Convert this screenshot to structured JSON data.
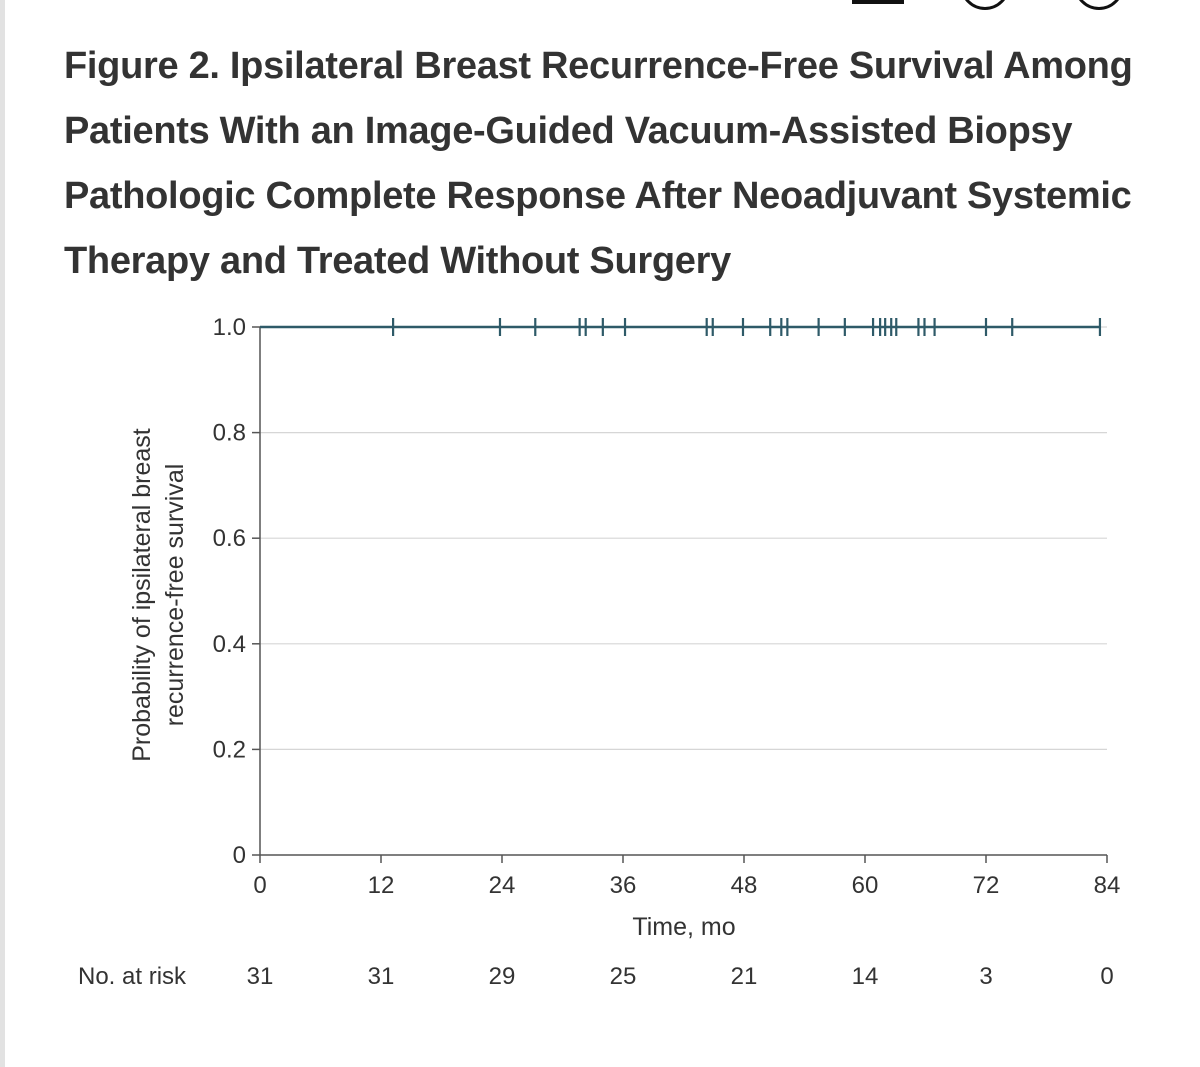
{
  "figure": {
    "title": "Figure 2.  Ipsilateral Breast Recurrence-Free Survival Among Patients With an Image-Guided Vacuum-Assisted Biopsy Pathologic Complete Response After Neoadjuvant Systemic Therapy and Treated Without Surgery"
  },
  "chart_data": {
    "type": "line",
    "title": "",
    "xlabel": "Time, mo",
    "ylabel_lines": [
      "Probability of ipsilateral breast",
      "recurrence-free survival"
    ],
    "xlim": [
      0,
      84
    ],
    "ylim": [
      0,
      1.0
    ],
    "x_ticks": [
      0,
      12,
      24,
      36,
      48,
      60,
      72,
      84
    ],
    "y_ticks": [
      0,
      0.2,
      0.4,
      0.6,
      0.8,
      1.0
    ],
    "y_tick_labels": [
      "0",
      "0.2",
      "0.4",
      "0.6",
      "0.8",
      "1.0"
    ],
    "grid": "horizontal",
    "line_color": "#2e5a68",
    "series": [
      {
        "x": [
          0,
          83.3
        ],
        "y": [
          1.0,
          1.0
        ],
        "censor_times": [
          13.2,
          23.8,
          27.3,
          31.7,
          32.3,
          34.0,
          36.2,
          44.3,
          44.9,
          47.9,
          50.6,
          51.7,
          52.3,
          55.4,
          58.0,
          60.8,
          61.5,
          62.0,
          62.6,
          63.1,
          65.3,
          65.9,
          66.9,
          72.0,
          74.6,
          83.3
        ]
      }
    ],
    "risk_table": {
      "label": "No. at risk",
      "times": [
        0,
        12,
        24,
        36,
        48,
        60,
        72,
        84
      ],
      "counts": [
        "31",
        "31",
        "29",
        "25",
        "21",
        "14",
        "3",
        "0"
      ]
    }
  }
}
